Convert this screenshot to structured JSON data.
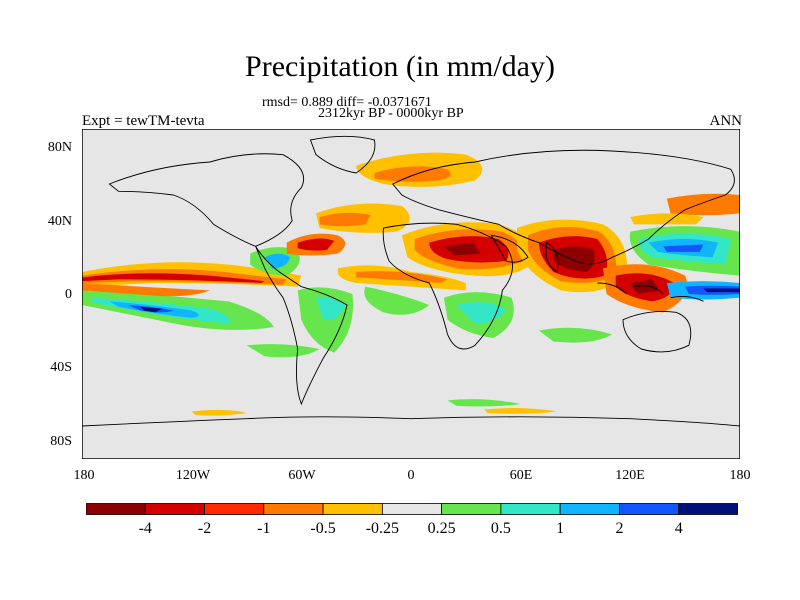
{
  "title": "Precipitation (in mm/day)",
  "stats_line": "rmsd= 0.889 diff= -0.0371671",
  "period_line": "2312kyr BP - 0000kyr BP",
  "experiment_label": "Expt = tewTM-tevta",
  "season_label": "ANN",
  "lat_ticks": [
    "80N",
    "40N",
    "0",
    "40S",
    "80S"
  ],
  "lon_ticks": [
    "180",
    "120W",
    "60W",
    "0",
    "60E",
    "120E",
    "180"
  ],
  "colorbar": {
    "labels": [
      "-4",
      "-2",
      "-1",
      "-0.5",
      "-0.25",
      "0.25",
      "0.5",
      "1",
      "2",
      "4"
    ],
    "colors": [
      "#8b0000",
      "#d40000",
      "#ff2a00",
      "#ff7a00",
      "#ffc000",
      "#e6e6e6",
      "#66e64c",
      "#33e6c8",
      "#10b4ff",
      "#1455ff",
      "#00107a"
    ]
  },
  "map_colors": {
    "ocean_neutral": "#e6e6e6",
    "coastline": "#000000"
  }
}
